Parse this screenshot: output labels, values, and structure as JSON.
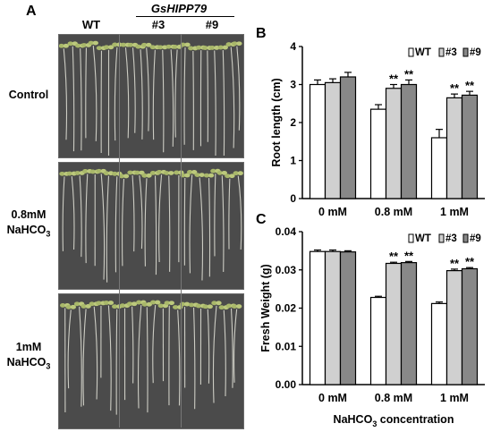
{
  "figure": {
    "panel_a": {
      "letter": "A",
      "gene_label": "GsHIPP79",
      "columns": [
        "WT",
        "#3",
        "#9"
      ],
      "rows": [
        {
          "line1": "Control",
          "line2": ""
        },
        {
          "line1": "0.8mM",
          "line2": "NaHCO",
          "line2_sub": "3"
        },
        {
          "line1": "1mM",
          "line2": "NaHCO",
          "line2_sub": "3"
        }
      ]
    },
    "panel_b": {
      "letter": "B"
    },
    "panel_c": {
      "letter": "C"
    },
    "colors": {
      "wt": "#ffffff",
      "l3": "#d0d0d0",
      "l9": "#888888",
      "photo_bg": "#4b4b4b"
    }
  },
  "chart_data": [
    {
      "type": "bar",
      "panel": "B",
      "categories": [
        "0 mM",
        "0.8 mM",
        "1 mM"
      ],
      "series": [
        {
          "name": "WT",
          "values": [
            3.0,
            2.35,
            1.6
          ],
          "errors": [
            0.12,
            0.12,
            0.22
          ],
          "sig": [
            "",
            "",
            ""
          ]
        },
        {
          "name": "#3",
          "values": [
            3.05,
            2.9,
            2.65
          ],
          "errors": [
            0.1,
            0.1,
            0.1
          ],
          "sig": [
            "",
            "**",
            "**"
          ]
        },
        {
          "name": "#9",
          "values": [
            3.2,
            3.0,
            2.72
          ],
          "errors": [
            0.12,
            0.12,
            0.1
          ],
          "sig": [
            "",
            "**",
            "**"
          ]
        }
      ],
      "ylabel": "Root length (cm)",
      "ylim": [
        0,
        4
      ],
      "yticks": [
        "0",
        "1",
        "2",
        "3",
        "4"
      ],
      "legend": "top-right"
    },
    {
      "type": "bar",
      "panel": "C",
      "categories": [
        "0 mM",
        "0.8 mM",
        "1 mM"
      ],
      "series": [
        {
          "name": "WT",
          "values": [
            0.0348,
            0.0228,
            0.0212
          ],
          "errors": [
            0.0004,
            0.0003,
            0.0004
          ],
          "sig": [
            "",
            "",
            ""
          ]
        },
        {
          "name": "#3",
          "values": [
            0.0348,
            0.0317,
            0.0298
          ],
          "errors": [
            0.0004,
            0.0003,
            0.0004
          ],
          "sig": [
            "",
            "**",
            "**"
          ]
        },
        {
          "name": "#9",
          "values": [
            0.0347,
            0.0319,
            0.0303
          ],
          "errors": [
            0.0003,
            0.0003,
            0.0003
          ],
          "sig": [
            "",
            "**",
            "**"
          ]
        }
      ],
      "ylabel": "Fresh Weight (g)",
      "xlabel_main": "NaHCO",
      "xlabel_sub": "3",
      "xlabel_tail": " concentration",
      "ylim": [
        0,
        0.04
      ],
      "yticks": [
        "0.00",
        "0.01",
        "0.02",
        "0.03",
        "0.04"
      ],
      "legend": "top-right"
    }
  ]
}
